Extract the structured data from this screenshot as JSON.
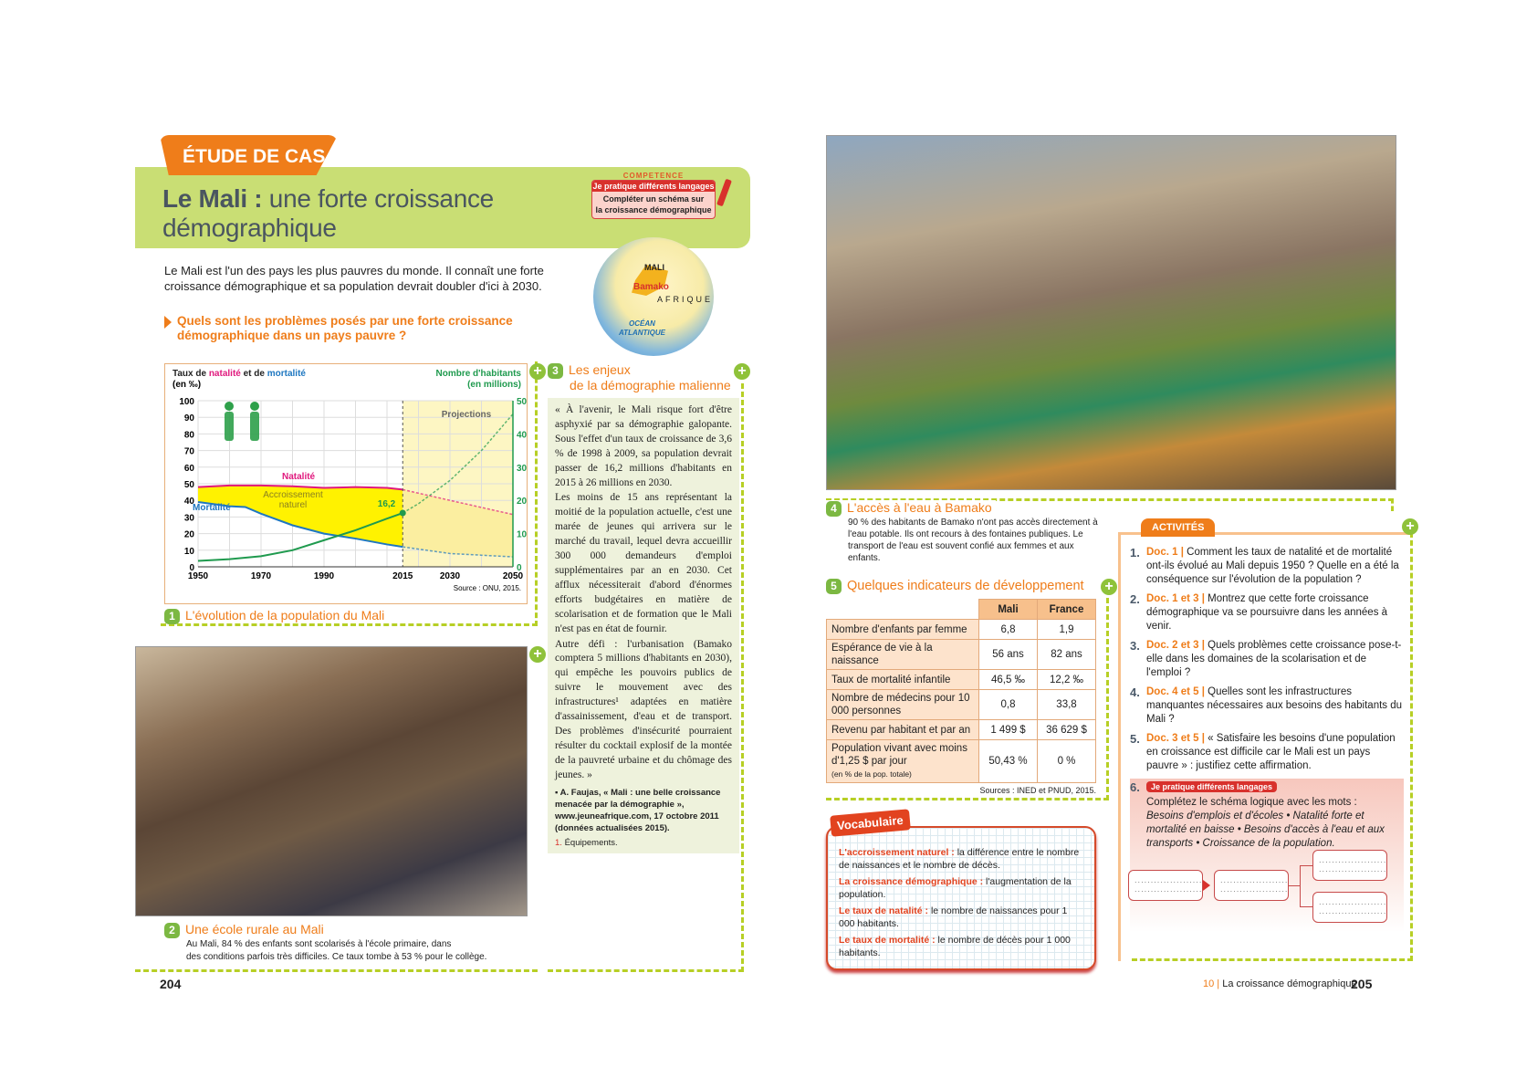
{
  "left_page": {
    "tab": "ÉTUDE DE CAS",
    "title_bold": "Le Mali :",
    "title_rest": " une forte croissance",
    "title_line2": "démographique",
    "competence": {
      "label": "COMPETENCE",
      "badge": "Je pratique différents langages",
      "line1": "Compléter un schéma sur",
      "line2": "la croissance démographique"
    },
    "intro": "Le Mali est l'un des pays les plus pauvres du monde. Il connaît une forte croissance démographique et sa population devrait doubler d'ici à 2030.",
    "question": "Quels sont les problèmes posés par une forte croissance démographique dans un pays pauvre ?",
    "map": {
      "country": "MALI",
      "city": "Bamako",
      "continent": "AFRIQUE",
      "ocean1": "OCÉAN",
      "ocean2": "ATLANTIQUE"
    },
    "doc1": {
      "num": "1",
      "caption": "L'évolution de la population du Mali"
    },
    "doc2": {
      "num": "2",
      "caption": "Une école rurale au Mali",
      "text1": "Au Mali, 84 % des enfants sont scolarisés à l'école primaire, dans",
      "text2": "des conditions parfois très difficiles. Ce taux tombe à 53 % pour le collège."
    },
    "doc3": {
      "num": "3",
      "title1": "Les enjeux",
      "title2": "de la démographie malienne",
      "p1": "« À l'avenir, le Mali risque fort d'être asphyxié par sa démographie galopante. Sous l'effet d'un taux de croissance de 3,6 % de 1998 à 2009, sa population devrait passer de 16,2 millions d'habitants en 2015 à 26 millions en 2030.",
      "p2": "Les moins de 15 ans représentant la moitié de la population actuelle, c'est une marée de jeunes qui arrivera sur le marché du travail, lequel devra accueillir 300 000 demandeurs d'emploi supplémentaires par an en 2030. Cet afflux nécessiterait d'abord d'énormes efforts budgétaires en matière de scolarisation et de formation que le Mali n'est pas en état de fournir.",
      "p3": "Autre défi : l'urbanisation (Bamako comptera 5 millions d'habitants en 2030), qui empêche les pouvoirs publics de suivre le mouvement avec des infrastructures¹ adaptées en matière d'assainissement, d'eau et de transport. Des problèmes d'insécurité pourraient résulter du cocktail explosif de la montée de la pauvreté urbaine et du chômage des jeunes. »",
      "source": "▪ A. Faujas, « Mali : une belle croissance menacée par la démographie », www.jeuneafrique.com, 17 octobre 2011 (données actualisées 2015).",
      "note_num": "1.",
      "note": " Équipements."
    },
    "page_number": "204"
  },
  "chart_data": {
    "type": "line",
    "title_parts": [
      "Taux de ",
      "natalité",
      " et de ",
      "mortalité"
    ],
    "ylabel_unit": "(en ‰)",
    "y2label1": "Nombre d'habitants",
    "y2label2": "(en millions)",
    "x_ticks": [
      "1950",
      "1970",
      "1990",
      "2015",
      "2030",
      "2050"
    ],
    "xlim": [
      1950,
      2050
    ],
    "ylim": [
      0,
      100
    ],
    "y_ticks": [
      "0",
      "10",
      "20",
      "30",
      "40",
      "50",
      "60",
      "70",
      "80",
      "90",
      "100"
    ],
    "y2lim": [
      0,
      50
    ],
    "y2_ticks": [
      "0",
      "10",
      "20",
      "30",
      "40",
      "50"
    ],
    "projection_start": 2015,
    "projection_label": "Projections",
    "area_label1": "Accroissement",
    "area_label2": "naturel",
    "point_label": "16,2",
    "source": "Source : ONU, 2015.",
    "grid": true,
    "series": [
      {
        "name": "Natalité",
        "color": "#e0197d",
        "axis": "left",
        "x": [
          1950,
          1960,
          1970,
          1980,
          1990,
          2000,
          2010,
          2015,
          2030,
          2050
        ],
        "y": [
          48,
          49,
          49,
          48.5,
          47.5,
          48,
          47.5,
          46.5,
          40,
          31.5
        ]
      },
      {
        "name": "Mortalité",
        "color": "#1e77c0",
        "axis": "left",
        "x": [
          1950,
          1960,
          1965,
          1970,
          1980,
          1990,
          2000,
          2010,
          2015,
          2030,
          2050
        ],
        "y": [
          39,
          36.5,
          36,
          32,
          25,
          20,
          17,
          13.5,
          12,
          8,
          6
        ]
      },
      {
        "name": "Nombre d'habitants",
        "color": "#1f9a4e",
        "axis": "right",
        "x": [
          1950,
          1960,
          1970,
          1980,
          1990,
          2000,
          2010,
          2015,
          2020,
          2030,
          2040,
          2050
        ],
        "y": [
          1.8,
          2.3,
          3.2,
          5,
          8,
          11,
          14.5,
          16.2,
          19,
          26,
          35,
          46
        ]
      }
    ],
    "colors": {
      "area": "#fff200",
      "projection_bg": "#fdf6c3"
    }
  },
  "right_page": {
    "doc4": {
      "num": "4",
      "caption": "L'accès à l'eau à Bamako",
      "text": "90 % des habitants de Bamako n'ont pas accès directement à l'eau potable. Ils ont recours à des fontaines publiques. Le transport de l'eau est souvent confié aux femmes et aux enfants."
    },
    "doc5": {
      "num": "5",
      "title": "Quelques indicateurs de développement",
      "headers": [
        "Mali",
        "France"
      ],
      "rows": [
        {
          "label": "Nombre d'enfants par femme",
          "mali": "6,8",
          "france": "1,9"
        },
        {
          "label": "Espérance de vie à la naissance",
          "mali": "56 ans",
          "france": "82 ans"
        },
        {
          "label": "Taux de mortalité infantile",
          "mali": "46,5 ‰",
          "france": "12,2 ‰"
        },
        {
          "label": "Nombre de médecins pour 10 000 personnes",
          "mali": "0,8",
          "france": "33,8"
        },
        {
          "label": "Revenu par habitant et par an",
          "mali": "1 499 $",
          "france": "36 629 $"
        },
        {
          "label": "Population vivant avec moins d'1,25 $ par jour",
          "sub": "(en % de la pop. totale)",
          "mali": "50,43 %",
          "france": "0 %"
        }
      ],
      "source": "Sources : INED et PNUD, 2015."
    },
    "vocab": {
      "tag": "Vocabulaire",
      "items": [
        {
          "term": "L'accroissement naturel :",
          "def": " la différence entre le nombre de naissances et le nombre de décès."
        },
        {
          "term": "La croissance démographique :",
          "def": " l'augmentation de la population."
        },
        {
          "term": "Le taux de natalité :",
          "def": " le nombre de naissances pour 1 000 habitants."
        },
        {
          "term": "Le taux de mortalité :",
          "def": " le nombre de décès pour 1 000 habitants."
        }
      ]
    },
    "activities": {
      "tag": "ACTIVITÉS",
      "items": [
        {
          "n": "1.",
          "doc": "Doc. 1 |",
          "text": " Comment les taux de natalité et de mortalité ont-ils évolué au Mali depuis 1950 ? Quelle en a été la conséquence sur l'évolution de la population ?"
        },
        {
          "n": "2.",
          "doc": "Doc. 1 et 3 |",
          "text": " Montrez que cette forte croissance démographique va se poursuivre dans les années à venir."
        },
        {
          "n": "3.",
          "doc": "Doc. 2 et 3 |",
          "text": " Quels problèmes cette croissance pose-t-elle dans les domaines de la scolarisation et de l'emploi ?"
        },
        {
          "n": "4.",
          "doc": "Doc. 4 et 5 |",
          "text": " Quelles sont les infrastructures manquantes nécessaires aux besoins des habitants du Mali ?"
        },
        {
          "n": "5.",
          "doc": "Doc. 3 et 5 |",
          "text": " « Satisfaire les besoins d'une population en croissance est difficile car le Mali est un pays pauvre » : justifiez cette affirmation."
        }
      ],
      "q6": {
        "n": "6.",
        "badge": "Je pratique différents langages",
        "intro": "Complétez le schéma logique avec les mots :",
        "words": "Besoins d'emplois et d'écoles • Natalité forte et mortalité en baisse • Besoins d'accès à l'eau et aux transports • Croissance de la population.",
        "slot": "....................... ......................."
      }
    },
    "footer": {
      "chapter": "10",
      "sep": " | ",
      "title": "La croissance démographique",
      "page_number": "205"
    }
  }
}
